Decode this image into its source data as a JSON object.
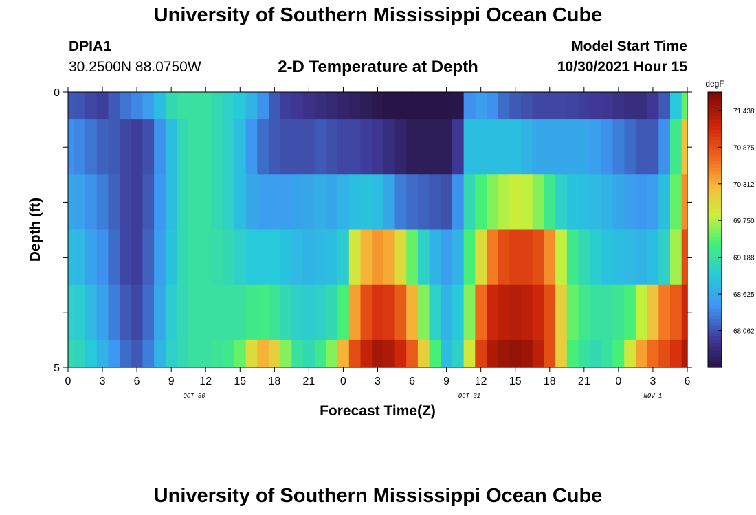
{
  "header": {
    "title": "University of Southern Mississippi Ocean Cube",
    "station": "DPIA1",
    "coordinates": "30.2500N  88.0750W",
    "subtitle": "2-D Temperature at Depth",
    "model_start_label": "Model Start Time",
    "model_start_value": "10/30/2021 Hour 15"
  },
  "footer": {
    "title": "University of Southern Mississippi Ocean Cube"
  },
  "chart_data": {
    "type": "heatmap",
    "xlabel": "Forecast Time(Z)",
    "ylabel": "Depth (ft)",
    "x_tick_labels": [
      "0",
      "3",
      "6",
      "9",
      "12",
      "15",
      "18",
      "21",
      "0",
      "3",
      "6",
      "9",
      "12",
      "15",
      "18",
      "21",
      "0",
      "3",
      "6"
    ],
    "date_labels": [
      {
        "label": "OCT 30",
        "at_hour": 11
      },
      {
        "label": "OCT 31",
        "at_hour": 35
      },
      {
        "label": "NOV 1",
        "at_hour": 51
      }
    ],
    "x_range_hours": [
      0,
      54
    ],
    "y_ticks": [
      "0",
      "5"
    ],
    "y_range_ft": [
      0,
      5
    ],
    "colorbar": {
      "unit": "degF",
      "min": 67.5,
      "max": 71.72,
      "tick_labels": [
        "71.438",
        "70.875",
        "70.312",
        "69.750",
        "69.188",
        "68.625",
        "68.062"
      ],
      "tick_values": [
        71.438,
        70.875,
        70.312,
        69.75,
        69.188,
        68.625,
        68.062
      ]
    },
    "depth_layers": [
      "0-0.5 ft",
      "0.5-1.5 ft",
      "1.5-2.5 ft",
      "2.5-3.5 ft",
      "3.5-4.5 ft",
      "4.5-5 ft"
    ],
    "time_hours": [
      0,
      1,
      2,
      3,
      4,
      5,
      6,
      7,
      8,
      9,
      10,
      11,
      12,
      13,
      14,
      15,
      16,
      17,
      18,
      19,
      20,
      21,
      22,
      23,
      24,
      25,
      26,
      27,
      28,
      29,
      30,
      31,
      32,
      33,
      34,
      35,
      36,
      37,
      38,
      39,
      40,
      41,
      42,
      43,
      44,
      45,
      46,
      47,
      48,
      49,
      50,
      51,
      52,
      53,
      54
    ],
    "values": [
      [
        68.1,
        68.08,
        68.0,
        67.95,
        68.1,
        68.25,
        68.35,
        68.5,
        68.8,
        69.1,
        69.2,
        69.2,
        69.2,
        69.1,
        69.0,
        68.9,
        68.7,
        68.4,
        68.1,
        67.95,
        67.9,
        67.85,
        67.8,
        67.75,
        67.7,
        67.65,
        67.6,
        67.55,
        67.5,
        67.5,
        67.5,
        67.5,
        67.5,
        67.5,
        67.52,
        68.4,
        68.5,
        68.4,
        68.2,
        68.1,
        68.05,
        68.0,
        68.0,
        68.0,
        67.98,
        67.95,
        67.92,
        67.9,
        67.85,
        67.8,
        67.8,
        67.9,
        68.1,
        68.9,
        69.5
      ],
      [
        68.4,
        68.35,
        68.25,
        68.15,
        68.1,
        68.0,
        67.95,
        68.05,
        68.4,
        68.8,
        69.1,
        69.2,
        69.2,
        69.1,
        69.0,
        68.8,
        68.45,
        68.2,
        68.1,
        68.05,
        68.05,
        68.05,
        68.1,
        68.05,
        68.0,
        68.0,
        67.95,
        67.9,
        67.8,
        67.7,
        67.6,
        67.6,
        67.6,
        67.6,
        67.9,
        68.8,
        68.8,
        68.8,
        68.8,
        68.8,
        68.7,
        68.6,
        68.6,
        68.6,
        68.6,
        68.6,
        68.5,
        68.4,
        68.3,
        68.2,
        68.1,
        68.1,
        68.4,
        69.3,
        70.2
      ],
      [
        68.6,
        68.55,
        68.4,
        68.3,
        68.15,
        68.0,
        67.95,
        68.1,
        68.45,
        68.8,
        69.1,
        69.2,
        69.2,
        69.1,
        69.0,
        68.8,
        68.6,
        68.5,
        68.5,
        68.5,
        68.55,
        68.6,
        68.65,
        68.6,
        68.7,
        68.8,
        68.85,
        68.8,
        68.6,
        68.3,
        68.2,
        68.15,
        68.1,
        68.05,
        68.4,
        69.1,
        69.4,
        69.6,
        69.75,
        69.85,
        69.8,
        69.6,
        69.3,
        69.0,
        68.85,
        68.8,
        68.75,
        68.7,
        68.6,
        68.5,
        68.45,
        68.5,
        68.8,
        69.5,
        70.5
      ],
      [
        68.8,
        68.75,
        68.55,
        68.4,
        68.2,
        68.0,
        67.95,
        68.15,
        68.5,
        68.85,
        69.1,
        69.2,
        69.2,
        69.15,
        69.1,
        69.0,
        68.9,
        68.9,
        68.9,
        68.85,
        68.75,
        68.7,
        68.75,
        68.8,
        68.95,
        69.9,
        70.3,
        70.45,
        70.35,
        70.0,
        69.5,
        69.0,
        68.7,
        68.5,
        68.7,
        69.4,
        70.0,
        70.6,
        70.9,
        71.0,
        71.0,
        70.9,
        70.5,
        69.8,
        69.3,
        69.1,
        68.95,
        68.85,
        68.8,
        68.75,
        68.7,
        68.8,
        69.0,
        69.7,
        70.9
      ],
      [
        69.0,
        68.95,
        68.75,
        68.55,
        68.3,
        68.1,
        68.0,
        68.2,
        68.6,
        68.95,
        69.1,
        69.2,
        69.2,
        69.2,
        69.2,
        69.2,
        69.3,
        69.35,
        69.25,
        69.1,
        69.0,
        68.95,
        69.0,
        69.1,
        69.4,
        70.4,
        70.9,
        71.1,
        71.05,
        70.8,
        70.3,
        69.6,
        69.0,
        68.7,
        68.9,
        69.6,
        70.7,
        71.2,
        71.3,
        71.35,
        71.3,
        71.2,
        70.9,
        70.1,
        69.5,
        69.3,
        69.2,
        69.2,
        69.25,
        69.4,
        69.8,
        70.2,
        70.6,
        70.8,
        71.2
      ],
      [
        69.1,
        69.05,
        68.9,
        68.7,
        68.45,
        68.2,
        68.1,
        68.3,
        68.7,
        69.0,
        69.1,
        69.2,
        69.2,
        69.25,
        69.3,
        69.5,
        70.0,
        70.3,
        70.1,
        69.6,
        69.2,
        69.1,
        69.3,
        69.6,
        70.3,
        70.9,
        71.25,
        71.45,
        71.4,
        71.2,
        70.8,
        70.1,
        69.4,
        68.8,
        69.0,
        69.9,
        71.0,
        71.4,
        71.5,
        71.55,
        71.5,
        71.3,
        70.9,
        70.1,
        69.4,
        69.2,
        69.1,
        69.2,
        69.4,
        69.9,
        70.4,
        70.7,
        70.9,
        71.1,
        71.4
      ]
    ]
  }
}
